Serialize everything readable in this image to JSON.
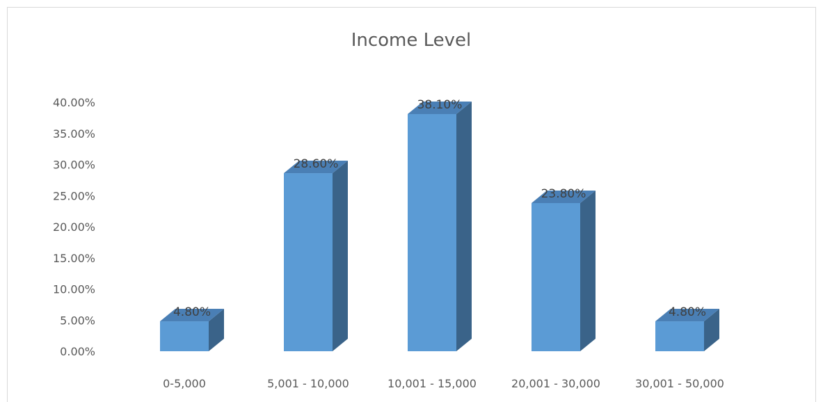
{
  "chart_data": {
    "type": "bar",
    "style": "3d-column",
    "title": "Income Level",
    "categories": [
      "0-5,000",
      "5,001 - 10,000",
      "10,001 - 15,000",
      "20,001 - 30,000",
      "30,001 - 50,000"
    ],
    "series": [
      {
        "values": [
          4.8,
          28.6,
          38.1,
          23.8,
          4.8
        ],
        "data_labels": [
          "4.80%",
          "28.60%",
          "38.10%",
          "23.80%",
          "4.80%"
        ]
      }
    ],
    "ylim": [
      0,
      40
    ],
    "yticks": [
      0,
      5,
      10,
      15,
      20,
      25,
      30,
      35,
      40
    ],
    "ytick_labels": [
      "0.00%",
      "5.00%",
      "10.00%",
      "15.00%",
      "20.00%",
      "25.00%",
      "30.00%",
      "35.00%",
      "40.00%"
    ],
    "grid": false,
    "legend": "none",
    "colors": {
      "bar_front": "#5b9bd5",
      "bar_side": "#3a6389",
      "bar_top": "#4a7fb5",
      "text": "#595959",
      "frame": "#d9d9d9"
    }
  }
}
